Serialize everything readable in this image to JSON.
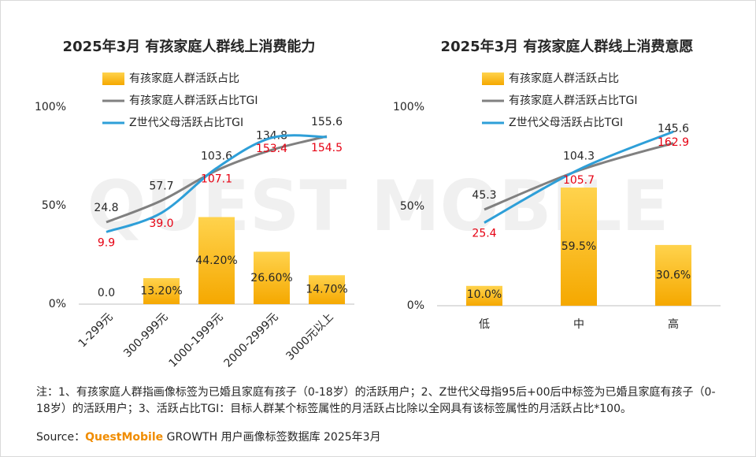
{
  "watermark": "QUEST MOBILE",
  "chart_data": [
    {
      "type": "combo",
      "title": "2025年3月 有孩家庭人群线上消费能力",
      "categories": [
        "1-299元",
        "300-999元",
        "1000-1999元",
        "2000-2999元",
        "3000元以上"
      ],
      "x_label_rotation": -45,
      "legend": "top-left",
      "ylim": [
        0,
        100
      ],
      "yticks": [
        {
          "value": 0,
          "label": "0%"
        },
        {
          "value": 50,
          "label": "50%"
        },
        {
          "value": 100,
          "label": "100%"
        }
      ],
      "y2lim": [
        -100,
        200
      ],
      "series": [
        {
          "name": "有孩家庭人群活跃占比",
          "type": "bar",
          "color": "#ffc000",
          "values": [
            0,
            13.2,
            44.2,
            26.6,
            14.7
          ],
          "value_labels": [
            "0.0",
            "13.20%",
            "44.20%",
            "26.60%",
            "14.70%"
          ]
        },
        {
          "name": "有孩家庭人群活跃占比TGI",
          "type": "line",
          "axis": "y2",
          "color": "#808080",
          "label_color": "#262626",
          "values": [
            24.8,
            57.7,
            103.6,
            134.8,
            155.6
          ],
          "value_labels": [
            "24.8",
            "57.7",
            "103.6",
            "134.8",
            "155.6"
          ]
        },
        {
          "name": "Z世代父母活跃占比TGI",
          "type": "line",
          "axis": "y2",
          "color": "#2e9fd8",
          "label_color": "#e60012",
          "values": [
            9.9,
            39.0,
            107.1,
            153.4,
            154.5
          ],
          "value_labels": [
            "9.9",
            "39.0",
            "107.1",
            "153.4",
            "154.5"
          ]
        }
      ]
    },
    {
      "type": "combo",
      "title": "2025年3月 有孩家庭人群线上消费意愿",
      "categories": [
        "低",
        "中",
        "高"
      ],
      "x_label_rotation": 0,
      "legend": "top-left",
      "ylim": [
        0,
        100
      ],
      "yticks": [
        {
          "value": 0,
          "label": "0%"
        },
        {
          "value": 50,
          "label": "50%"
        },
        {
          "value": 100,
          "label": "100%"
        }
      ],
      "y2lim": [
        -100,
        200
      ],
      "series": [
        {
          "name": "有孩家庭人群活跃占比",
          "type": "bar",
          "color": "#ffc000",
          "values": [
            10.0,
            59.5,
            30.6
          ],
          "value_labels": [
            "10.0%",
            "59.5%",
            "30.6%"
          ]
        },
        {
          "name": "有孩家庭人群活跃占比TGI",
          "type": "line",
          "axis": "y2",
          "color": "#808080",
          "label_color": "#262626",
          "values": [
            45.3,
            104.3,
            145.6
          ],
          "value_labels": [
            "45.3",
            "104.3",
            "145.6"
          ]
        },
        {
          "name": "Z世代父母活跃占比TGI",
          "type": "line",
          "axis": "y2",
          "color": "#2e9fd8",
          "label_color": "#e60012",
          "values": [
            25.4,
            105.7,
            162.9
          ],
          "value_labels": [
            "25.4",
            "105.7",
            "162.9"
          ]
        }
      ]
    }
  ],
  "footer": {
    "note": "注：1、有孩家庭人群指画像标签为已婚且家庭有孩子（0-18岁）的活跃用户；2、Z世代父母指95后+00后中标签为已婚且家庭有孩子（0-18岁）的活跃用户；3、活跃占比TGI：目标人群某个标签属性的月活跃占比除以全网具有该标签属性的月活跃占比*100。",
    "source_label": "Source：",
    "source_brand": "QuestMobile",
    "source_text": "GROWTH 用户画像标签数据库 2025年3月"
  }
}
